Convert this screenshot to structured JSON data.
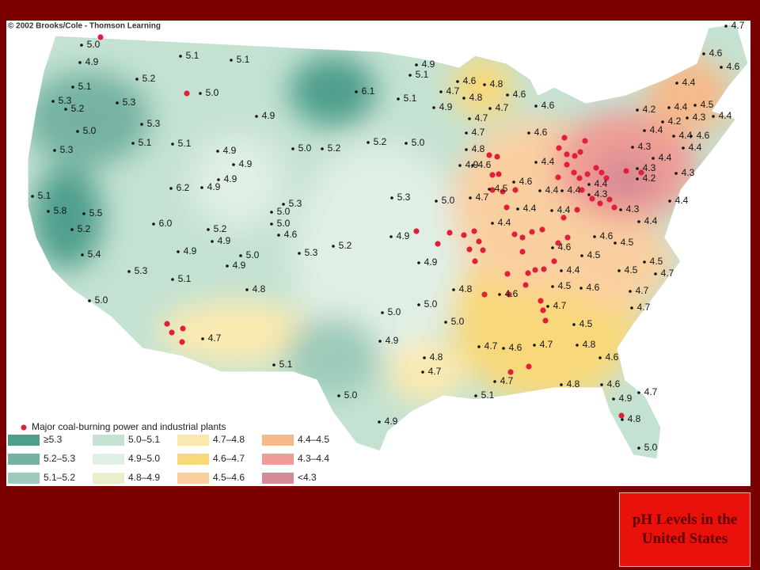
{
  "credit": "© 2002 Brooks/Cole - Thomson Learning",
  "readings": [
    "5.0",
    "4.9",
    "5.1",
    "5.2",
    "5.3",
    "5.2",
    "5.3",
    "5.0",
    "5.3",
    "5.1",
    "5.1",
    "5.3",
    "5.1",
    "5.1",
    "5.0",
    "4.9",
    "4.9",
    "4.9",
    "4.9",
    "6.2",
    "4.9",
    "5.1",
    "5.8",
    "5.5",
    "5.2",
    "5.4",
    "5.3",
    "6.0",
    "5.2",
    "4.9",
    "4.9",
    "5.0",
    "4.9",
    "5.1",
    "4.8",
    "5.0",
    "4.7",
    "6.1",
    "5.0",
    "5.2",
    "5.2",
    "5.0",
    "5.3",
    "5.0",
    "5.0",
    "4.6",
    "5.3",
    "5.2",
    "5.3",
    "4.9",
    "4.9",
    "5.0",
    "4.8",
    "5.0",
    "5.0",
    "5.0",
    "4.9",
    "4.8",
    "4.7",
    "5.1",
    "5.0",
    "4.9",
    "5.1",
    "4.7",
    "4.8",
    "4.6",
    "4.9",
    "4.7",
    "4.8",
    "5.0",
    "4.9",
    "5.1",
    "4.6",
    "4.8",
    "4.7",
    "4.9",
    "5.1",
    "4.8",
    "4.7",
    "4.6",
    "4.6",
    "4.7",
    "4.7",
    "4.6",
    "4.8",
    "4.9",
    "4.6",
    "4.4",
    "4.6",
    "4.5",
    "4.4",
    "4.4",
    "4.4",
    "4.3",
    "4.7",
    "4.4",
    "4.4",
    "4.4",
    "4.3",
    "4.4",
    "4.6",
    "4.5",
    "4.6",
    "4.5",
    "4.4",
    "4.5",
    "4.5",
    "4.7",
    "4.5",
    "4.6",
    "4.7",
    "4.6",
    "4.7",
    "4.7",
    "4.5",
    "4.7",
    "4.6",
    "4.7",
    "4.8",
    "4.6",
    "4.7",
    "4.6",
    "4.6",
    "4.4",
    "4.2",
    "4.4",
    "4.5",
    "4.2",
    "4.3",
    "4.4",
    "4.4",
    "4.4",
    "4.6",
    "4.3",
    "4.4",
    "4.4",
    "4.3",
    "4.3",
    "4.2",
    "4.4"
  ],
  "legend": {
    "marker_label": "Major coal-burning power and industrial plants",
    "ranges": [
      "≥5.3",
      "5.2–5.3",
      "5.1–5.2",
      "5.0–5.1",
      "4.9–5.0",
      "4.8–4.9",
      "4.7–4.8",
      "4.6–4.7",
      "4.5–4.6",
      "4.4–4.5",
      "4.3–4.4",
      "<4.3"
    ]
  },
  "caption": "pH Levels in the United States"
}
